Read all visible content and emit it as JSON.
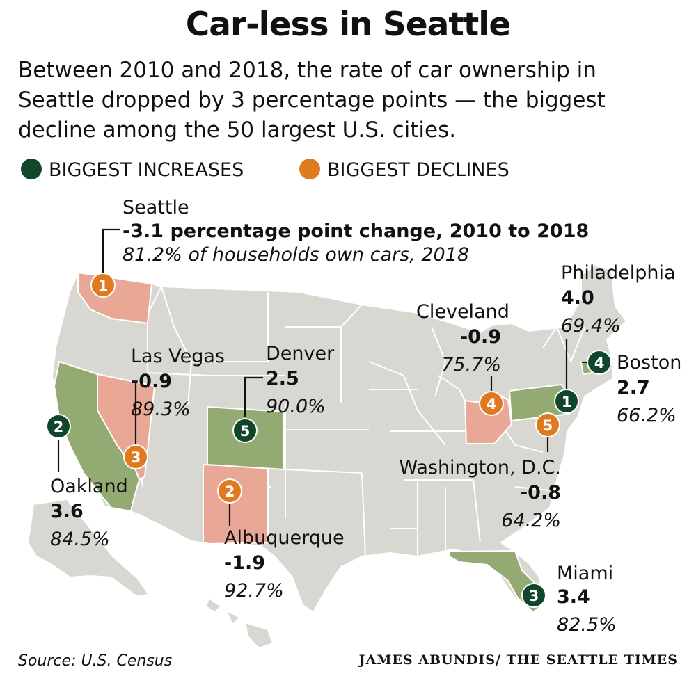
{
  "title": "Car-less in Seattle",
  "subtitle": "Between 2010 and 2018, the rate of car ownership in Seattle dropped by 3 percentage points — the biggest decline among the 50 largest U.S. cities.",
  "legend": {
    "increases": "BIGGEST INCREASES",
    "declines": "BIGGEST DECLINES"
  },
  "colors": {
    "increase_marker": "#10472c",
    "decline_marker": "#e07a1f",
    "increase_state": "#93aa73",
    "decline_state": "#e9a796",
    "land": "#d9d7d2",
    "border": "#ffffff"
  },
  "cities": {
    "seattle": {
      "rank": "1",
      "name": "Seattle",
      "change": "-3.1",
      "change_suffix": " percentage point change, 2010 to 2018",
      "pct": "81.2% of households own cars, 2018",
      "state": "Washington",
      "group": "decline"
    },
    "albuquerque": {
      "rank": "2",
      "name": "Albuquerque",
      "change": "-1.9",
      "pct": "92.7%",
      "state": "New Mexico",
      "group": "decline"
    },
    "las_vegas": {
      "rank": "3",
      "name": "Las Vegas",
      "change": "-0.9",
      "pct": "89.3%",
      "state": "Nevada",
      "group": "decline"
    },
    "cleveland": {
      "rank": "4",
      "name": "Cleveland",
      "change": "-0.9",
      "pct": "75.7%",
      "state": "Ohio",
      "group": "decline"
    },
    "washington_dc": {
      "rank": "5",
      "name": "Washington, D.C.",
      "change": "-0.8",
      "pct": "64.2%",
      "state": "District of Columbia",
      "group": "decline"
    },
    "philadelphia": {
      "rank": "1",
      "name": "Philadelphia",
      "change": "4.0",
      "pct": "69.4%",
      "state": "Pennsylvania",
      "group": "increase"
    },
    "oakland": {
      "rank": "2",
      "name": "Oakland",
      "change": "3.6",
      "pct": "84.5%",
      "state": "California",
      "group": "increase"
    },
    "miami": {
      "rank": "3",
      "name": "Miami",
      "change": "3.4",
      "pct": "82.5%",
      "state": "Florida",
      "group": "increase"
    },
    "boston": {
      "rank": "4",
      "name": "Boston",
      "change": "2.7",
      "pct": "66.2%",
      "state": "Massachusetts",
      "group": "increase"
    },
    "denver": {
      "rank": "5",
      "name": "Denver",
      "change": "2.5",
      "pct": "90.0%",
      "state": "Colorado",
      "group": "increase"
    }
  },
  "source": "Source: U.S. Census",
  "credit": "JAMES ABUNDIS/ THE SEATTLE TIMES"
}
